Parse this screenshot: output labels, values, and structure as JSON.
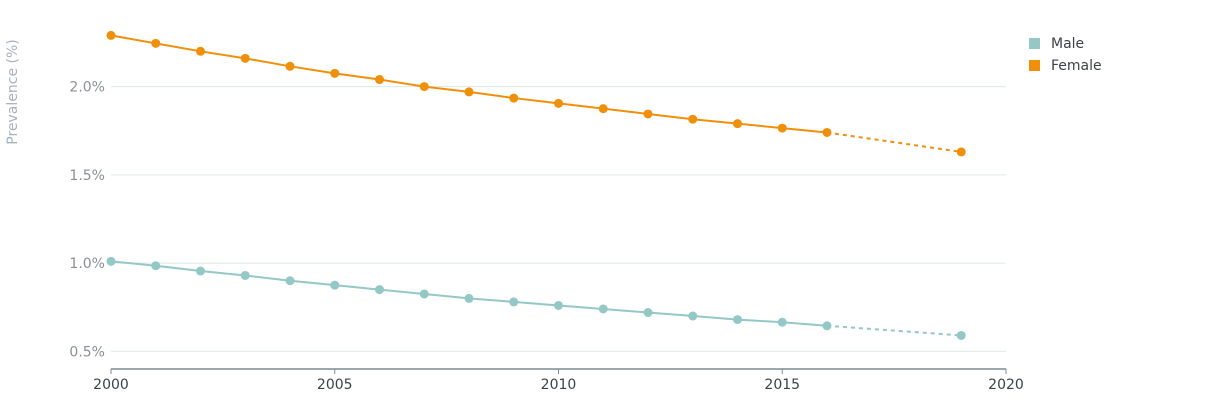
{
  "chart_data": {
    "type": "line",
    "title": "",
    "xlabel": "",
    "ylabel": "Prevalence (%)",
    "xlim": [
      2000,
      2020
    ],
    "ylim": [
      0.4,
      2.4
    ],
    "x_ticks": [
      2000,
      2005,
      2010,
      2015,
      2020
    ],
    "y_ticks": [
      0.5,
      1.0,
      1.5,
      2.0
    ],
    "y_tick_labels": [
      "0.5%",
      "1.0%",
      "1.5%",
      "2.0%"
    ],
    "grid": true,
    "legend_position": "top-right",
    "series": [
      {
        "name": "Male",
        "color": "#93c8c6",
        "points": [
          [
            2000,
            1.01
          ],
          [
            2001,
            0.985
          ],
          [
            2002,
            0.955
          ],
          [
            2003,
            0.93
          ],
          [
            2004,
            0.9
          ],
          [
            2005,
            0.875
          ],
          [
            2006,
            0.85
          ],
          [
            2007,
            0.825
          ],
          [
            2008,
            0.8
          ],
          [
            2009,
            0.78
          ],
          [
            2010,
            0.76
          ],
          [
            2011,
            0.74
          ],
          [
            2012,
            0.72
          ],
          [
            2013,
            0.7
          ],
          [
            2014,
            0.68
          ],
          [
            2015,
            0.665
          ],
          [
            2016,
            0.645
          ]
        ],
        "projection": [
          [
            2016,
            0.645
          ],
          [
            2019,
            0.59
          ]
        ]
      },
      {
        "name": "Female",
        "color": "#f0900a",
        "points": [
          [
            2000,
            2.29
          ],
          [
            2001,
            2.245
          ],
          [
            2002,
            2.2
          ],
          [
            2003,
            2.16
          ],
          [
            2004,
            2.115
          ],
          [
            2005,
            2.075
          ],
          [
            2006,
            2.04
          ],
          [
            2007,
            2.0
          ],
          [
            2008,
            1.97
          ],
          [
            2009,
            1.935
          ],
          [
            2010,
            1.905
          ],
          [
            2011,
            1.875
          ],
          [
            2012,
            1.845
          ],
          [
            2013,
            1.815
          ],
          [
            2014,
            1.79
          ],
          [
            2015,
            1.765
          ],
          [
            2016,
            1.74
          ]
        ],
        "projection": [
          [
            2016,
            1.74
          ],
          [
            2019,
            1.63
          ]
        ]
      }
    ]
  }
}
